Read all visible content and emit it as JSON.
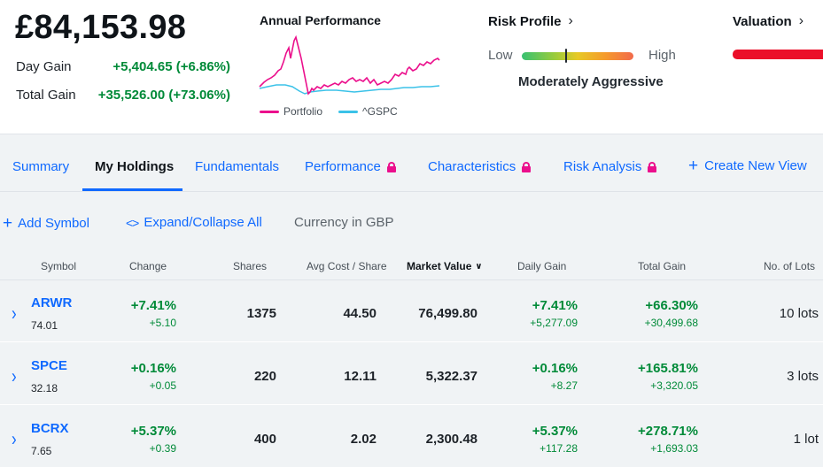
{
  "summary": {
    "total_value": "£84,153.98",
    "day_gain_label": "Day Gain",
    "day_gain_value": "+5,404.65 (+6.86%)",
    "total_gain_label": "Total Gain",
    "total_gain_value": "+35,526.00 (+73.06%)"
  },
  "performance": {
    "title": "Annual Performance",
    "legend": [
      {
        "name": "Portfolio",
        "color": "#eb0f8c"
      },
      {
        "name": "^GSPC",
        "color": "#3bc2e8"
      }
    ]
  },
  "risk": {
    "title": "Risk Profile",
    "low_label": "Low",
    "high_label": "High",
    "level": "Moderately Aggressive",
    "marker_position": 0.4
  },
  "valuation": {
    "title": "Valuation",
    "bar_color": "#eb0f29"
  },
  "tabs": [
    {
      "label": "Summary",
      "locked": false,
      "active": false
    },
    {
      "label": "My Holdings",
      "locked": false,
      "active": true
    },
    {
      "label": "Fundamentals",
      "locked": false,
      "active": false
    },
    {
      "label": "Performance",
      "locked": true,
      "active": false
    },
    {
      "label": "Characteristics",
      "locked": true,
      "active": false
    },
    {
      "label": "Risk Analysis",
      "locked": true,
      "active": false
    },
    {
      "label": "Create New View",
      "locked": false,
      "active": false
    }
  ],
  "toolbar": {
    "add_symbol": "Add Symbol",
    "expand_collapse": "Expand/Collapse All",
    "currency": "Currency in GBP"
  },
  "table": {
    "headers": [
      "Symbol",
      "Change",
      "Shares",
      "Avg Cost / Share",
      "Market Value",
      "Daily Gain",
      "Total Gain",
      "No. of Lots"
    ],
    "sort_column": "Market Value",
    "rows": [
      {
        "symbol": "ARWR",
        "price": "74.01",
        "change_pct": "+7.41%",
        "change_abs": "+5.10",
        "shares": "1375",
        "avg_cost": "44.50",
        "market_value": "76,499.80",
        "daily_gain_pct": "+7.41%",
        "daily_gain_abs": "+5,277.09",
        "total_gain_pct": "+66.30%",
        "total_gain_abs": "+30,499.68",
        "lots": "10 lots"
      },
      {
        "symbol": "SPCE",
        "price": "32.18",
        "change_pct": "+0.16%",
        "change_abs": "+0.05",
        "shares": "220",
        "avg_cost": "12.11",
        "market_value": "5,322.37",
        "daily_gain_pct": "+0.16%",
        "daily_gain_abs": "+8.27",
        "total_gain_pct": "+165.81%",
        "total_gain_abs": "+3,320.05",
        "lots": "3 lots"
      },
      {
        "symbol": "BCRX",
        "price": "7.65",
        "change_pct": "+5.37%",
        "change_abs": "+0.39",
        "shares": "400",
        "avg_cost": "2.02",
        "market_value": "2,300.48",
        "daily_gain_pct": "+5.37%",
        "daily_gain_abs": "+117.28",
        "total_gain_pct": "+278.71%",
        "total_gain_abs": "+1,693.03",
        "lots": "1 lot"
      }
    ]
  }
}
